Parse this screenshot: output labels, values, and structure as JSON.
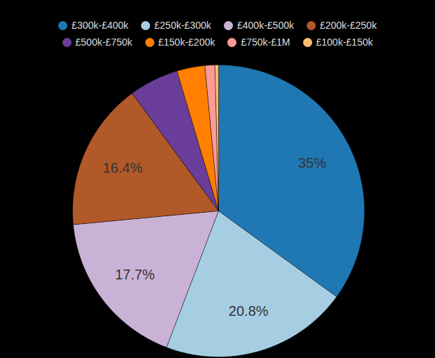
{
  "chart_data": {
    "type": "pie",
    "categories": [
      "£300k-£400k",
      "£250k-£300k",
      "£400k-£500k",
      "£200k-£250k",
      "£500k-£750k",
      "£150k-£200k",
      "£750k-£1M",
      "£100k-£150k"
    ],
    "values": [
      35,
      20.8,
      17.7,
      16.4,
      5.5,
      3.1,
      1.1,
      0.4
    ],
    "value_labels": [
      "35%",
      "20.8%",
      "17.7%",
      "16.4%",
      null,
      null,
      null,
      null
    ],
    "colors": [
      "#1f78b4",
      "#a6cee3",
      "#cab2d6",
      "#b15928",
      "#6a3d9a",
      "#ff7f00",
      "#fb9a99",
      "#fdbf6f"
    ],
    "data_labels": true,
    "legend": "top"
  }
}
